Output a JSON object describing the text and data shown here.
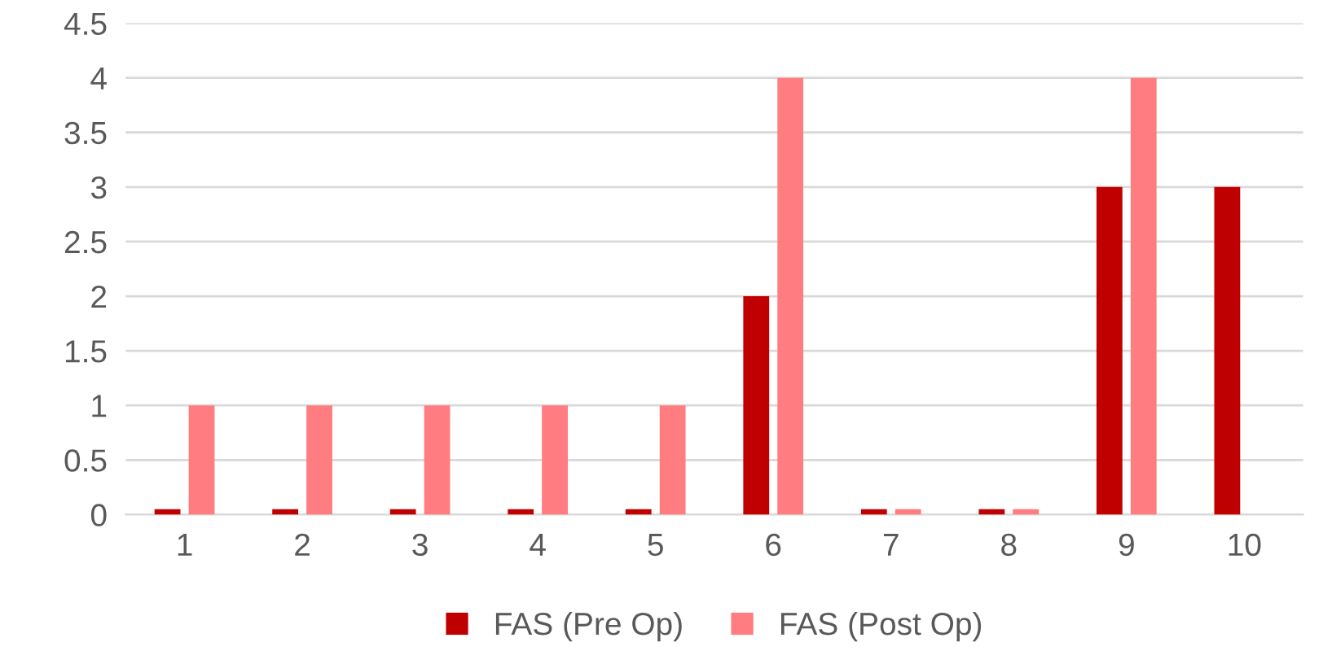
{
  "chart_data": {
    "type": "bar",
    "categories": [
      "1",
      "2",
      "3",
      "4",
      "5",
      "6",
      "7",
      "8",
      "9",
      "10"
    ],
    "series": [
      {
        "name": "FAS (Pre Op)",
        "color": "#c00000",
        "values": [
          0.05,
          0.05,
          0.05,
          0.05,
          0.05,
          2,
          0.05,
          0.05,
          3,
          3
        ]
      },
      {
        "name": "FAS (Post Op)",
        "color": "#ff7c80",
        "values": [
          1,
          1,
          1,
          1,
          1,
          4,
          0.05,
          0.05,
          4,
          null
        ]
      }
    ],
    "ylim": [
      0,
      4.5
    ],
    "yticks": [
      0,
      0.5,
      1,
      1.5,
      2,
      2.5,
      3,
      3.5,
      4,
      4.5
    ],
    "grid": "y",
    "legend": "bottom"
  }
}
